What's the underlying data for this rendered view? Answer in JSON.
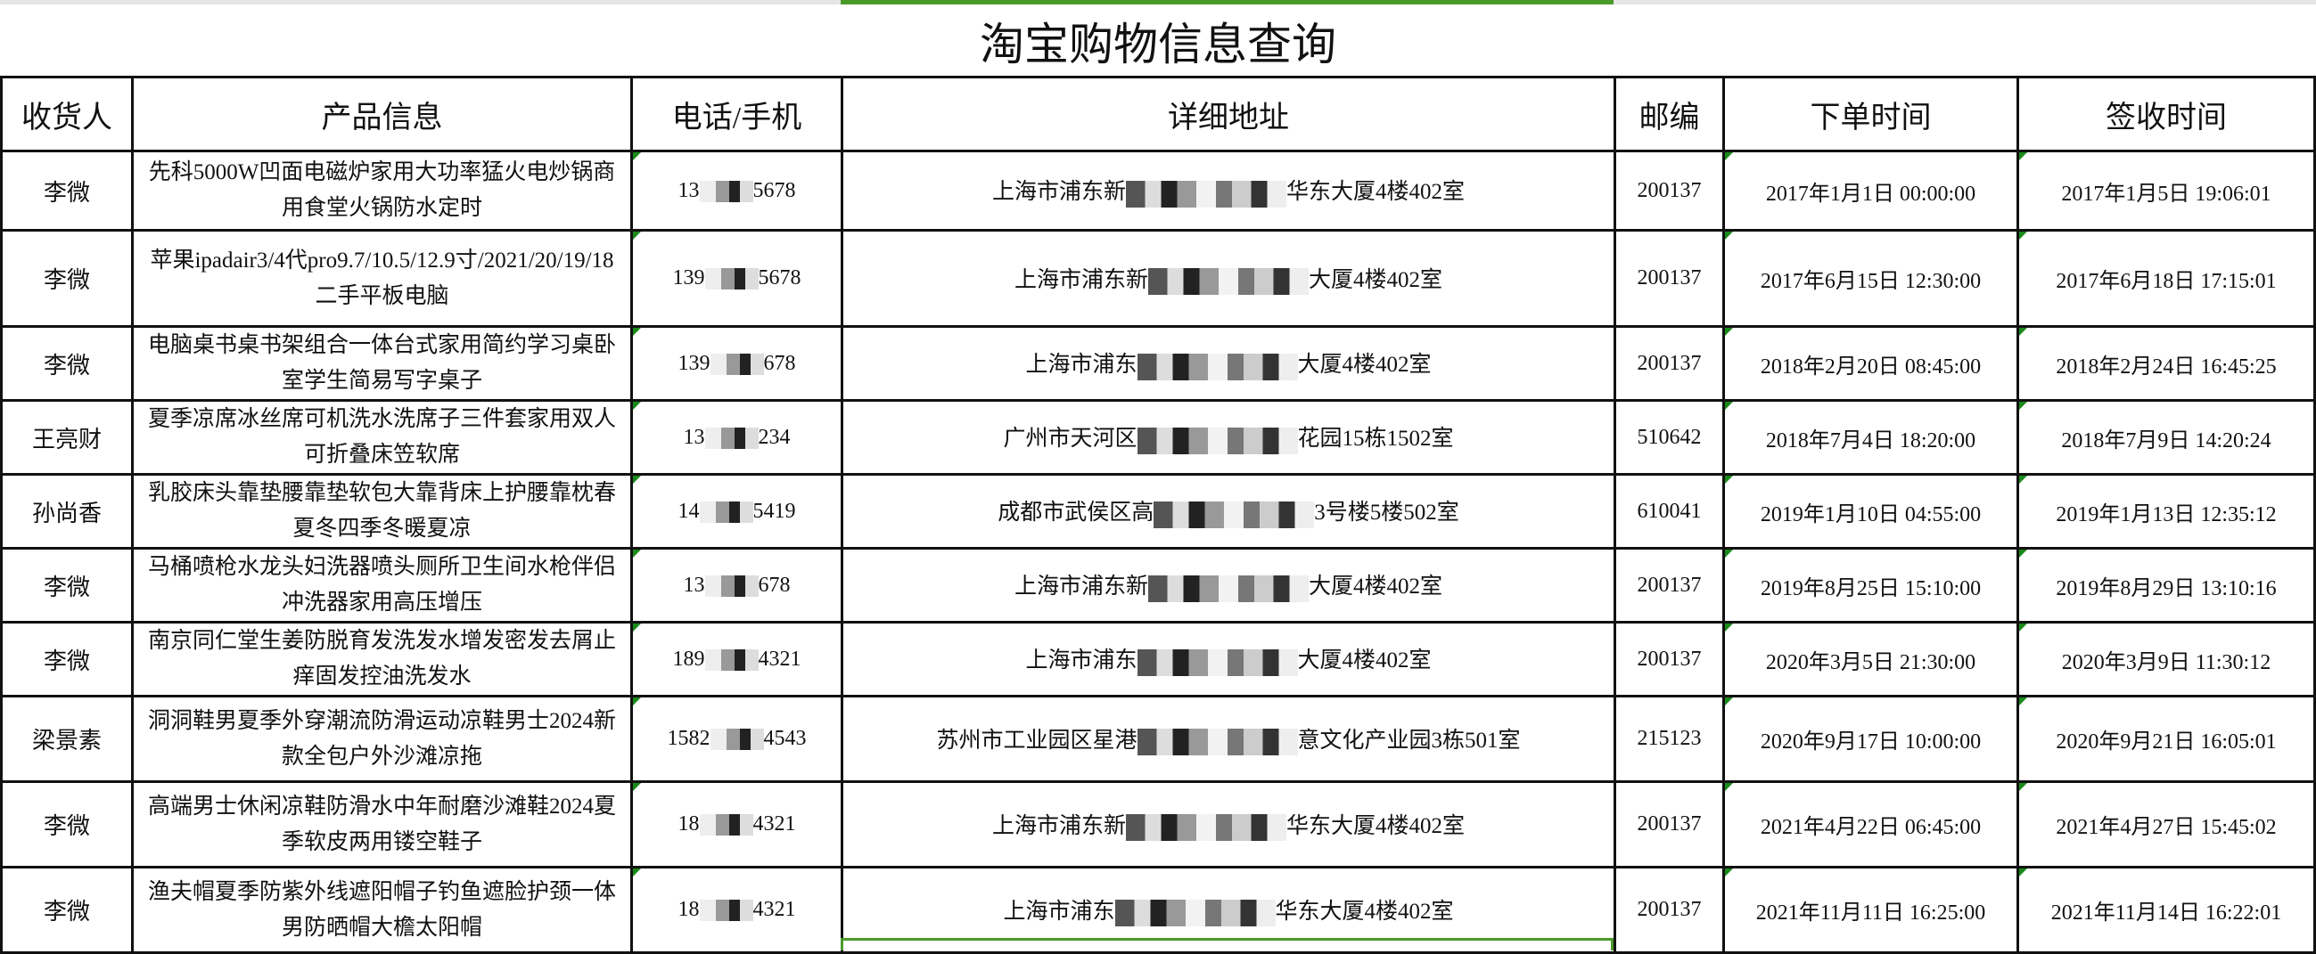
{
  "title": "淘宝购物信息查询",
  "accent_color": "#4a9a2a",
  "columns": [
    "收货人",
    "产品信息",
    "电话/手机",
    "详细地址",
    "邮编",
    "下单时间",
    "签收时间"
  ],
  "rows": [
    {
      "name": "李微",
      "product": "先科5000W凹面电磁炉家用大功率猛火电炒锅商用食堂火锅防水定时",
      "phone_pre": "13",
      "phone_post": "5678",
      "addr_pre": "上海市浦东新",
      "addr_post": "华东大厦4楼402室",
      "zip": "200137",
      "order": "2017年1月1日 00:00:00",
      "sign": "2017年1月5日 19:06:01"
    },
    {
      "name": "李微",
      "product": "苹果ipadair3/4代pro9.7/10.5/12.9寸/2021/20/19/18二手平板电脑",
      "phone_pre": "139",
      "phone_post": "5678",
      "addr_pre": "上海市浦东新",
      "addr_post": "大厦4楼402室",
      "zip": "200137",
      "order": "2017年6月15日 12:30:00",
      "sign": "2017年6月18日 17:15:01"
    },
    {
      "name": "李微",
      "product": "电脑桌书桌书架组合一体台式家用简约学习桌卧室学生简易写字桌子",
      "phone_pre": "139",
      "phone_post": "678",
      "addr_pre": "上海市浦东",
      "addr_post": "大厦4楼402室",
      "zip": "200137",
      "order": "2018年2月20日 08:45:00",
      "sign": "2018年2月24日 16:45:25"
    },
    {
      "name": "王亮财",
      "product": "夏季凉席冰丝席可机洗水洗席子三件套家用双人可折叠床笠软席",
      "phone_pre": "13",
      "phone_post": "234",
      "addr_pre": "广州市天河区",
      "addr_post": "花园15栋1502室",
      "zip": "510642",
      "order": "2018年7月4日 18:20:00",
      "sign": "2018年7月9日 14:20:24"
    },
    {
      "name": "孙尚香",
      "product": "乳胶床头靠垫腰靠垫软包大靠背床上护腰靠枕春夏冬四季冬暖夏凉",
      "phone_pre": "14",
      "phone_post": "5419",
      "addr_pre": "成都市武侯区高",
      "addr_post": "3号楼5楼502室",
      "zip": "610041",
      "order": "2019年1月10日 04:55:00",
      "sign": "2019年1月13日 12:35:12"
    },
    {
      "name": "李微",
      "product": "马桶喷枪水龙头妇洗器喷头厕所卫生间水枪伴侣冲洗器家用高压增压",
      "phone_pre": "13",
      "phone_post": "678",
      "addr_pre": "上海市浦东新",
      "addr_post": "大厦4楼402室",
      "zip": "200137",
      "order": "2019年8月25日 15:10:00",
      "sign": "2019年8月29日 13:10:16"
    },
    {
      "name": "李微",
      "product": "南京同仁堂生姜防脱育发洗发水增发密发去屑止痒固发控油洗发水",
      "phone_pre": "189",
      "phone_post": "4321",
      "addr_pre": "上海市浦东",
      "addr_post": "大厦4楼402室",
      "zip": "200137",
      "order": "2020年3月5日 21:30:00",
      "sign": "2020年3月9日 11:30:12"
    },
    {
      "name": "梁景素",
      "product": "洞洞鞋男夏季外穿潮流防滑运动凉鞋男士2024新款全包户外沙滩凉拖",
      "phone_pre": "1582",
      "phone_post": "4543",
      "addr_pre": "苏州市工业园区星港",
      "addr_post": "意文化产业园3栋501室",
      "zip": "215123",
      "order": "2020年9月17日 10:00:00",
      "sign": "2020年9月21日 16:05:01"
    },
    {
      "name": "李微",
      "product": "高端男士休闲凉鞋防滑水中年耐磨沙滩鞋2024夏季软皮两用镂空鞋子",
      "phone_pre": "18",
      "phone_post": "4321",
      "addr_pre": "上海市浦东新",
      "addr_post": "华东大厦4楼402室",
      "zip": "200137",
      "order": "2021年4月22日 06:45:00",
      "sign": "2021年4月27日 15:45:02"
    },
    {
      "name": "李微",
      "product": "渔夫帽夏季防紫外线遮阳帽子钓鱼遮脸护颈一体男防晒帽大檐太阳帽",
      "phone_pre": "18",
      "phone_post": "4321",
      "addr_pre": "上海市浦东",
      "addr_post": "华东大厦4楼402室",
      "zip": "200137",
      "order": "2021年11月11日 16:25:00",
      "sign": "2021年11月14日 16:22:01"
    }
  ]
}
